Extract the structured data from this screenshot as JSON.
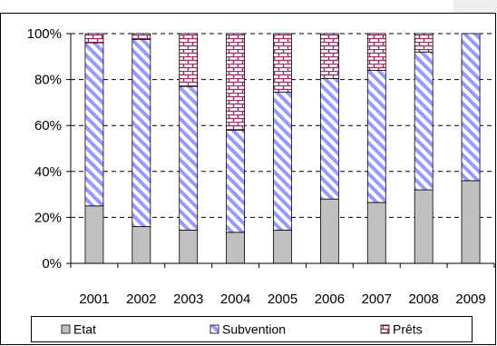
{
  "chart_data": {
    "type": "bar",
    "stacked": true,
    "categories": [
      "2001",
      "2002",
      "2003",
      "2004",
      "2005",
      "2006",
      "2007",
      "2008",
      "2009"
    ],
    "series": [
      {
        "name": "Etat",
        "values": [
          25,
          16,
          14.5,
          13.5,
          14.5,
          28,
          26.5,
          32,
          36
        ]
      },
      {
        "name": "Subvention",
        "values": [
          71,
          81.5,
          62.5,
          44.5,
          60,
          52.5,
          57.5,
          60,
          64
        ]
      },
      {
        "name": "Prêts",
        "values": [
          4,
          2.5,
          23,
          42,
          25.5,
          19.5,
          16,
          8,
          0
        ]
      }
    ],
    "y_ticks": [
      "0%",
      "20%",
      "40%",
      "60%",
      "80%",
      "100%"
    ],
    "ylim": [
      0,
      100
    ],
    "grid": "horizontal-dashed",
    "legend_position": "bottom"
  }
}
